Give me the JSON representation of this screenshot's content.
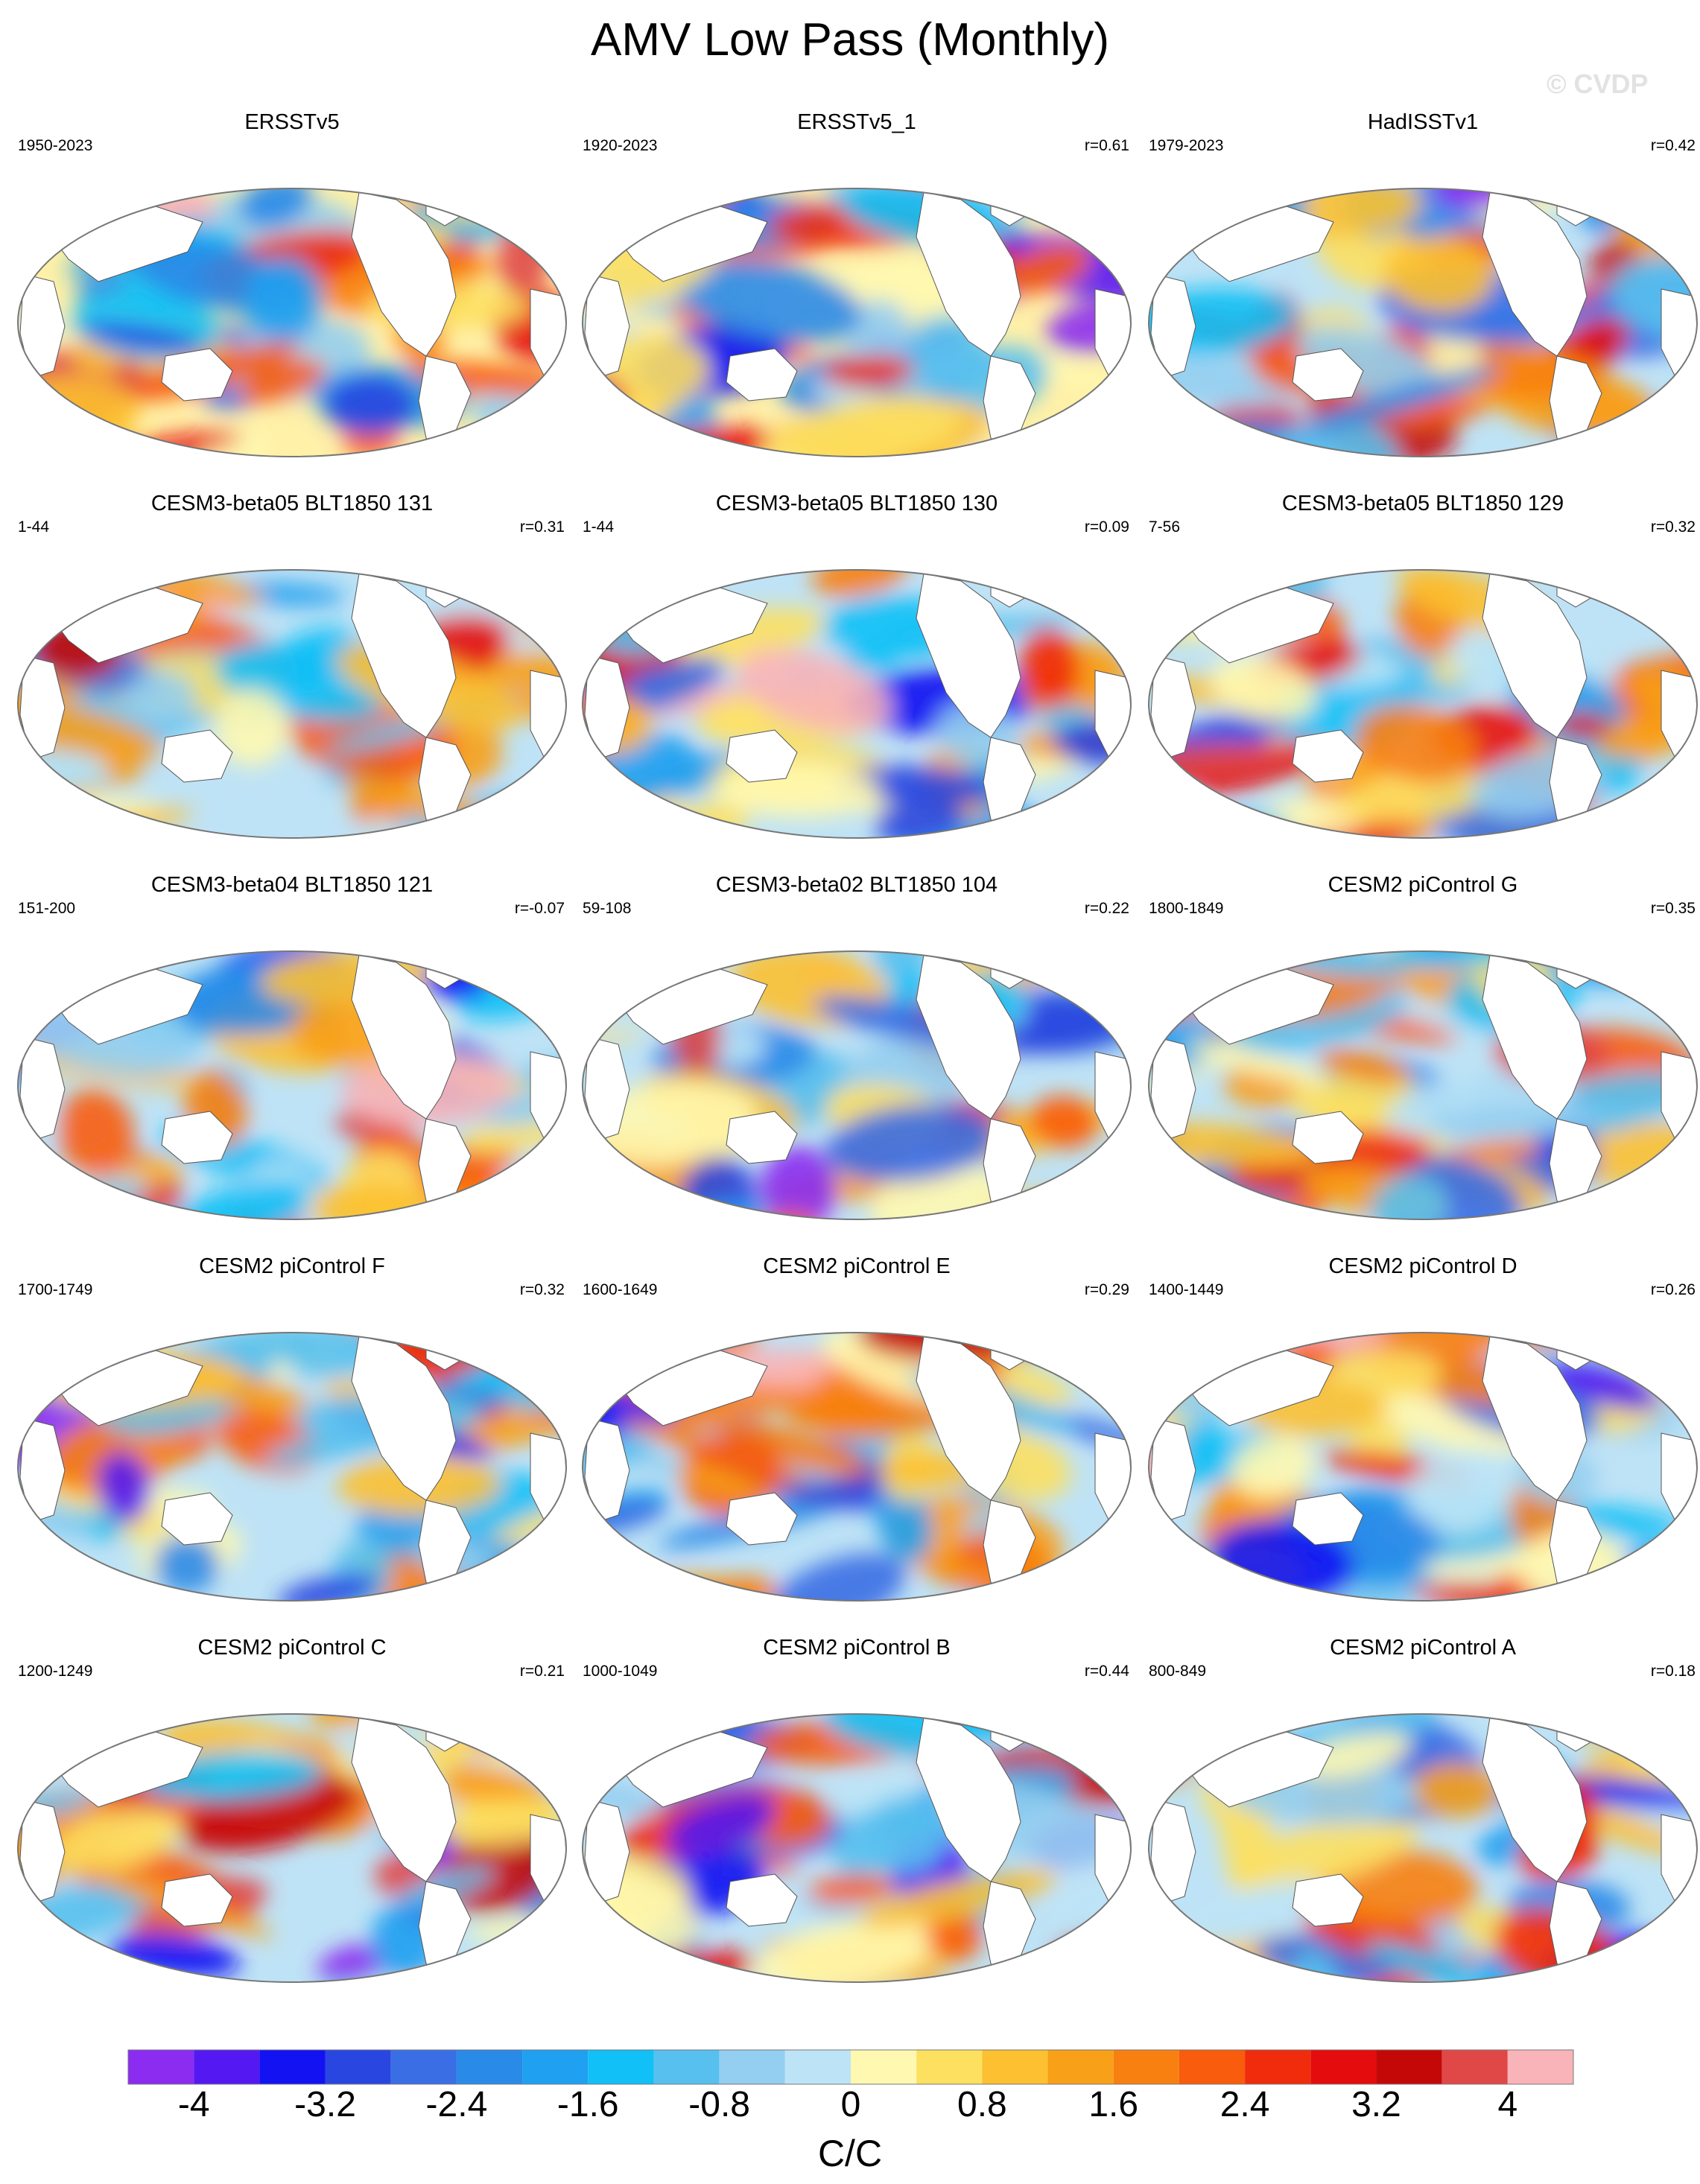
{
  "title": "AMV Low Pass (Monthly)",
  "watermark": "© CVDP",
  "chart_data": {
    "type": "heatmap",
    "description_units": "C/C",
    "projection": "global map panels",
    "colorbar": {
      "label": "C/C",
      "range": [
        -4.4,
        4.4
      ],
      "step": 0.4,
      "tick_labels": [
        "-4",
        "-3.2",
        "-2.4",
        "-1.6",
        "-0.8",
        "0",
        "0.8",
        "1.6",
        "2.4",
        "3.2",
        "4"
      ],
      "colors": [
        "#8b2cf0",
        "#5418f2",
        "#1212f2",
        "#2a46e0",
        "#3a6ee4",
        "#2a8ae8",
        "#20a0f0",
        "#10c0f6",
        "#58c0ee",
        "#94cef0",
        "#bde4f6",
        "#fff8b0",
        "#fde060",
        "#fcc030",
        "#f8a018",
        "#f88010",
        "#f85c0c",
        "#f02c0c",
        "#e40c0c",
        "#c40808",
        "#e04848",
        "#f8b4b8"
      ]
    },
    "panels": [
      {
        "title": "ERSSTv5",
        "period": "1950-2023",
        "r": ""
      },
      {
        "title": "ERSSTv5_1",
        "period": "1920-2023",
        "r": "r=0.61"
      },
      {
        "title": "HadISSTv1",
        "period": "1979-2023",
        "r": "r=0.42"
      },
      {
        "title": "CESM3-beta05 BLT1850 131",
        "period": "1-44",
        "r": "r=0.31"
      },
      {
        "title": "CESM3-beta05 BLT1850 130",
        "period": "1-44",
        "r": "r=0.09"
      },
      {
        "title": "CESM3-beta05 BLT1850 129",
        "period": "7-56",
        "r": "r=0.32"
      },
      {
        "title": "CESM3-beta04 BLT1850 121",
        "period": "151-200",
        "r": "r=-0.07"
      },
      {
        "title": "CESM3-beta02 BLT1850 104",
        "period": "59-108",
        "r": "r=0.22"
      },
      {
        "title": "CESM2 piControl G",
        "period": "1800-1849",
        "r": "r=0.35"
      },
      {
        "title": "CESM2 piControl F",
        "period": "1700-1749",
        "r": "r=0.32"
      },
      {
        "title": "CESM2 piControl E",
        "period": "1600-1649",
        "r": "r=0.29"
      },
      {
        "title": "CESM2 piControl D",
        "period": "1400-1449",
        "r": "r=0.26"
      },
      {
        "title": "CESM2 piControl C",
        "period": "1200-1249",
        "r": "r=0.21"
      },
      {
        "title": "CESM2 piControl B",
        "period": "1000-1049",
        "r": "r=0.44"
      },
      {
        "title": "CESM2 piControl A",
        "period": "800-849",
        "r": "r=0.18"
      }
    ]
  }
}
